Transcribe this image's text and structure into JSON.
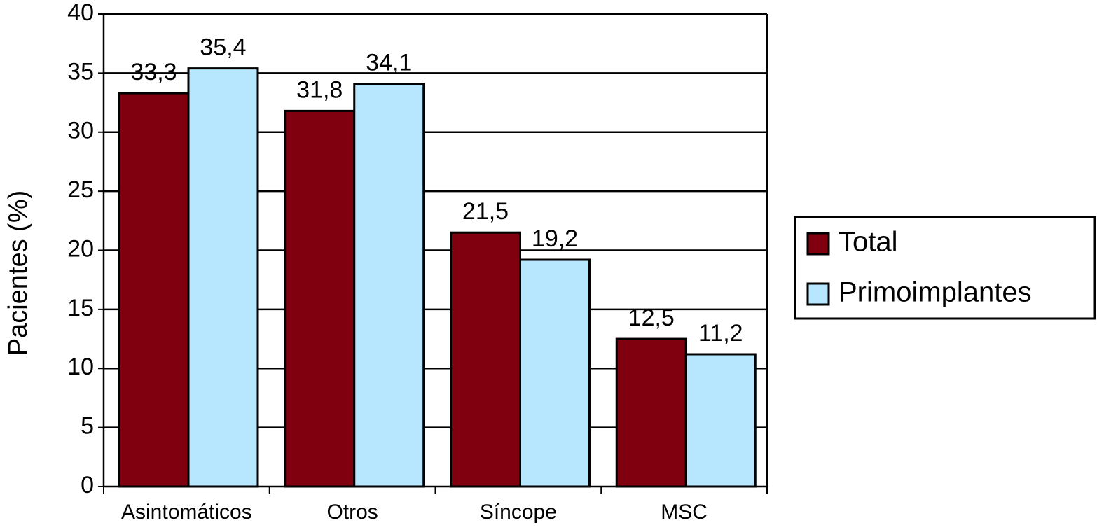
{
  "chart_data": {
    "type": "bar",
    "y_label": "Pacientes (%)",
    "categories": [
      "Asintomáticos",
      "Otros",
      "Síncope",
      "MSC"
    ],
    "series": [
      {
        "name": "Total",
        "color": "#800010",
        "values": [
          33.3,
          31.8,
          21.5,
          12.5
        ],
        "value_labels": [
          "33,3",
          "31,8",
          "21,5",
          "12,5"
        ]
      },
      {
        "name": "Primoimplantes",
        "color": "#b7e6ff",
        "values": [
          35.4,
          34.1,
          19.2,
          11.2
        ],
        "value_labels": [
          "35,4",
          "34,1",
          "19,2",
          "11,2"
        ]
      }
    ],
    "ylim": [
      0,
      40
    ],
    "yticks": [
      0,
      5,
      10,
      15,
      20,
      25,
      30,
      35,
      40
    ],
    "grid": true,
    "legend": "right"
  }
}
